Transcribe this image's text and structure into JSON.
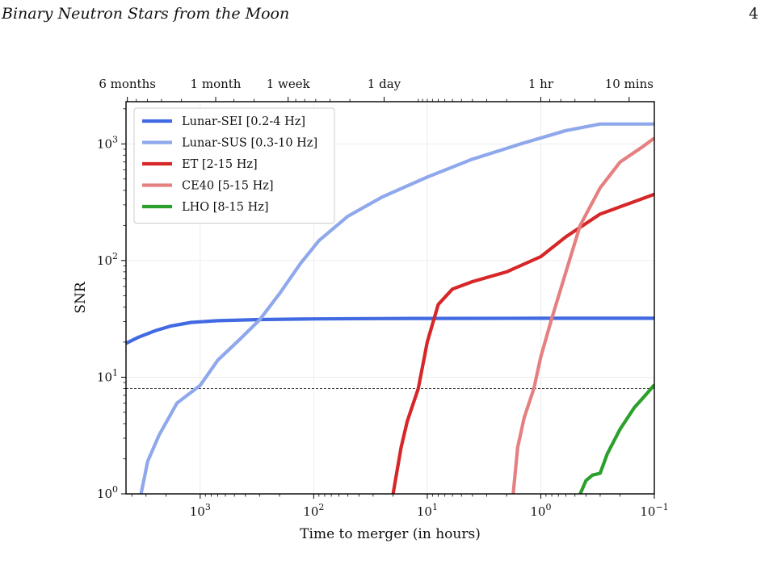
{
  "header": {
    "running_title": "Binary Neutron Stars from the Moon",
    "page_number": "4"
  },
  "chart_data": {
    "type": "line",
    "xlabel": "Time to merger (in hours)",
    "ylabel": "SNR",
    "x_scale": "log",
    "x_reversed": true,
    "y_scale": "log",
    "xlim": [
      4500,
      0.1
    ],
    "ylim": [
      1,
      2300
    ],
    "x_ticks": [
      {
        "value": 1000,
        "base": "10",
        "exp": "3"
      },
      {
        "value": 100,
        "base": "10",
        "exp": "2"
      },
      {
        "value": 10,
        "base": "10",
        "exp": "1"
      },
      {
        "value": 1,
        "base": "10",
        "exp": "0"
      },
      {
        "value": 0.1,
        "base": "10",
        "exp": "−1"
      }
    ],
    "y_ticks": [
      {
        "value": 1,
        "base": "10",
        "exp": "0"
      },
      {
        "value": 10,
        "base": "10",
        "exp": "1"
      },
      {
        "value": 100,
        "base": "10",
        "exp": "2"
      },
      {
        "value": 1000,
        "base": "10",
        "exp": "3"
      }
    ],
    "top_axis_ticks": [
      {
        "label": "6 months",
        "hours": 4380
      },
      {
        "label": "1 month",
        "hours": 730
      },
      {
        "label": "1 week",
        "hours": 168
      },
      {
        "label": "1 day",
        "hours": 24
      },
      {
        "label": "1 hr",
        "hours": 1
      },
      {
        "label": "10 mins",
        "hours": 0.1667
      }
    ],
    "threshold": {
      "snr": 8,
      "style": "dashed"
    },
    "grid": true,
    "legend_position": "top-left",
    "series": [
      {
        "name": "Lunar-SEI [0.2-4 Hz]",
        "color": "#4169e1",
        "points": [
          [
            4500,
            19.5
          ],
          [
            3500,
            22
          ],
          [
            2500,
            25
          ],
          [
            1800,
            27.5
          ],
          [
            1200,
            29.5
          ],
          [
            700,
            30.5
          ],
          [
            300,
            31.2
          ],
          [
            100,
            31.6
          ],
          [
            30,
            31.8
          ],
          [
            10,
            31.9
          ],
          [
            1,
            32
          ],
          [
            0.1,
            32
          ]
        ]
      },
      {
        "name": "Lunar-SUS [0.3-10 Hz]",
        "color": "#8fa8ec",
        "points": [
          [
            3320,
            1
          ],
          [
            2900,
            1.9
          ],
          [
            2300,
            3.2
          ],
          [
            1600,
            6
          ],
          [
            1000,
            8.5
          ],
          [
            700,
            14
          ],
          [
            450,
            21
          ],
          [
            300,
            31
          ],
          [
            200,
            52
          ],
          [
            130,
            95
          ],
          [
            90,
            148
          ],
          [
            50,
            240
          ],
          [
            25,
            350
          ],
          [
            10,
            520
          ],
          [
            4,
            740
          ],
          [
            1.5,
            1000
          ],
          [
            0.6,
            1300
          ],
          [
            0.3,
            1480
          ],
          [
            0.1,
            1480
          ]
        ]
      },
      {
        "name": "ET [2-15 Hz]",
        "color": "#d62728",
        "points": [
          [
            20,
            1
          ],
          [
            17,
            2.5
          ],
          [
            15,
            4.2
          ],
          [
            12,
            8
          ],
          [
            10,
            20
          ],
          [
            8,
            42
          ],
          [
            6,
            57
          ],
          [
            4,
            66
          ],
          [
            2,
            80
          ],
          [
            1,
            108
          ],
          [
            0.6,
            160
          ],
          [
            0.3,
            250
          ],
          [
            0.15,
            320
          ],
          [
            0.1,
            370
          ]
        ]
      },
      {
        "name": "CE40 [5-15 Hz]",
        "color": "#e58080",
        "points": [
          [
            1.75,
            1
          ],
          [
            1.6,
            2.5
          ],
          [
            1.4,
            4.5
          ],
          [
            1.15,
            8
          ],
          [
            1.0,
            15
          ],
          [
            0.8,
            32
          ],
          [
            0.6,
            80
          ],
          [
            0.45,
            200
          ],
          [
            0.3,
            420
          ],
          [
            0.2,
            700
          ],
          [
            0.13,
            930
          ],
          [
            0.1,
            1120
          ]
        ]
      },
      {
        "name": "LHO [8-15 Hz]",
        "color": "#2ca02c",
        "points": [
          [
            0.45,
            1
          ],
          [
            0.4,
            1.3
          ],
          [
            0.35,
            1.45
          ],
          [
            0.3,
            1.5
          ],
          [
            0.26,
            2.2
          ],
          [
            0.2,
            3.6
          ],
          [
            0.15,
            5.5
          ],
          [
            0.12,
            7
          ],
          [
            0.1,
            8.6
          ]
        ]
      }
    ]
  }
}
